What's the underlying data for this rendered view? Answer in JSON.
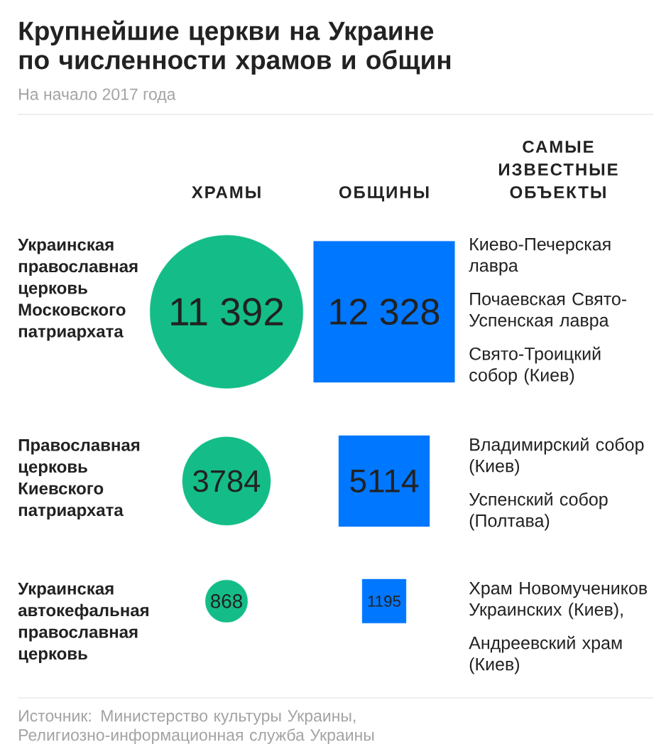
{
  "chart_data": {
    "type": "other",
    "title": "Крупнейшие церкви на Украине по численности храмов и общин",
    "subtitle": "На начало 2017 года",
    "categories": [
      "Украинская православная церковь Московского патриархата",
      "Православная церковь Киевского патриархата",
      "Украинская автокефальная православная церковь"
    ],
    "series": [
      {
        "name": "ХРАМЫ",
        "marker": "circle",
        "color": "#14bd87",
        "values": [
          11392,
          3784,
          868
        ],
        "value_labels": [
          "11 392",
          "3784",
          "868"
        ]
      },
      {
        "name": "ОБЩИНЫ",
        "marker": "square",
        "color": "#0077ff",
        "values": [
          12328,
          5114,
          1195
        ],
        "value_labels": [
          "12 328",
          "5114",
          "1195"
        ]
      }
    ],
    "annotations": [
      "САМЫЕ ИЗВЕСТНЫЕ ОБЪЕКТЫ",
      "Киево-Печерская лавра",
      "Почаевская Свято-Успенская лавра",
      "Свято-Троицкий собор (Киев)",
      "Владимирский собор (Киев)",
      "Успенский собор (Полтава)",
      "Храм Новомучеников Украинских (Киев),",
      "Андреевский храм (Киев)",
      "Источник: Министерство культуры Украины, Религиозно-информационная служба Украины"
    ]
  }
}
